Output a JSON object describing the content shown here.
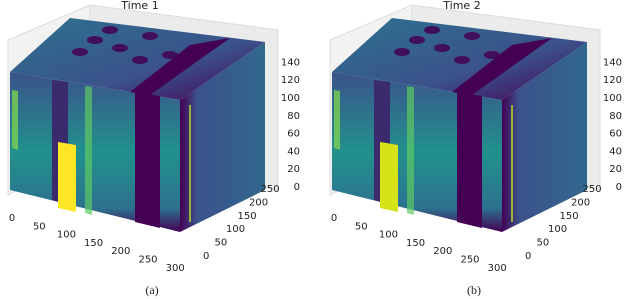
{
  "figure": {
    "panels": [
      {
        "title": "Time 1",
        "x_ticks": [
          0,
          50,
          100,
          150,
          200,
          250,
          300
        ],
        "y_ticks": [
          0,
          50,
          100,
          150,
          200,
          250
        ],
        "z_ticks": [
          0,
          20,
          40,
          60,
          80,
          100,
          120,
          140
        ],
        "caption": "(a)"
      },
      {
        "title": "Time 2",
        "x_ticks": [
          0,
          50,
          100,
          150,
          200,
          250,
          300
        ],
        "y_ticks": [
          0,
          50,
          100,
          150,
          200,
          250
        ],
        "z_ticks": [
          0,
          20,
          40,
          60,
          80,
          100,
          120,
          140
        ],
        "caption": "(b)"
      }
    ]
  }
}
